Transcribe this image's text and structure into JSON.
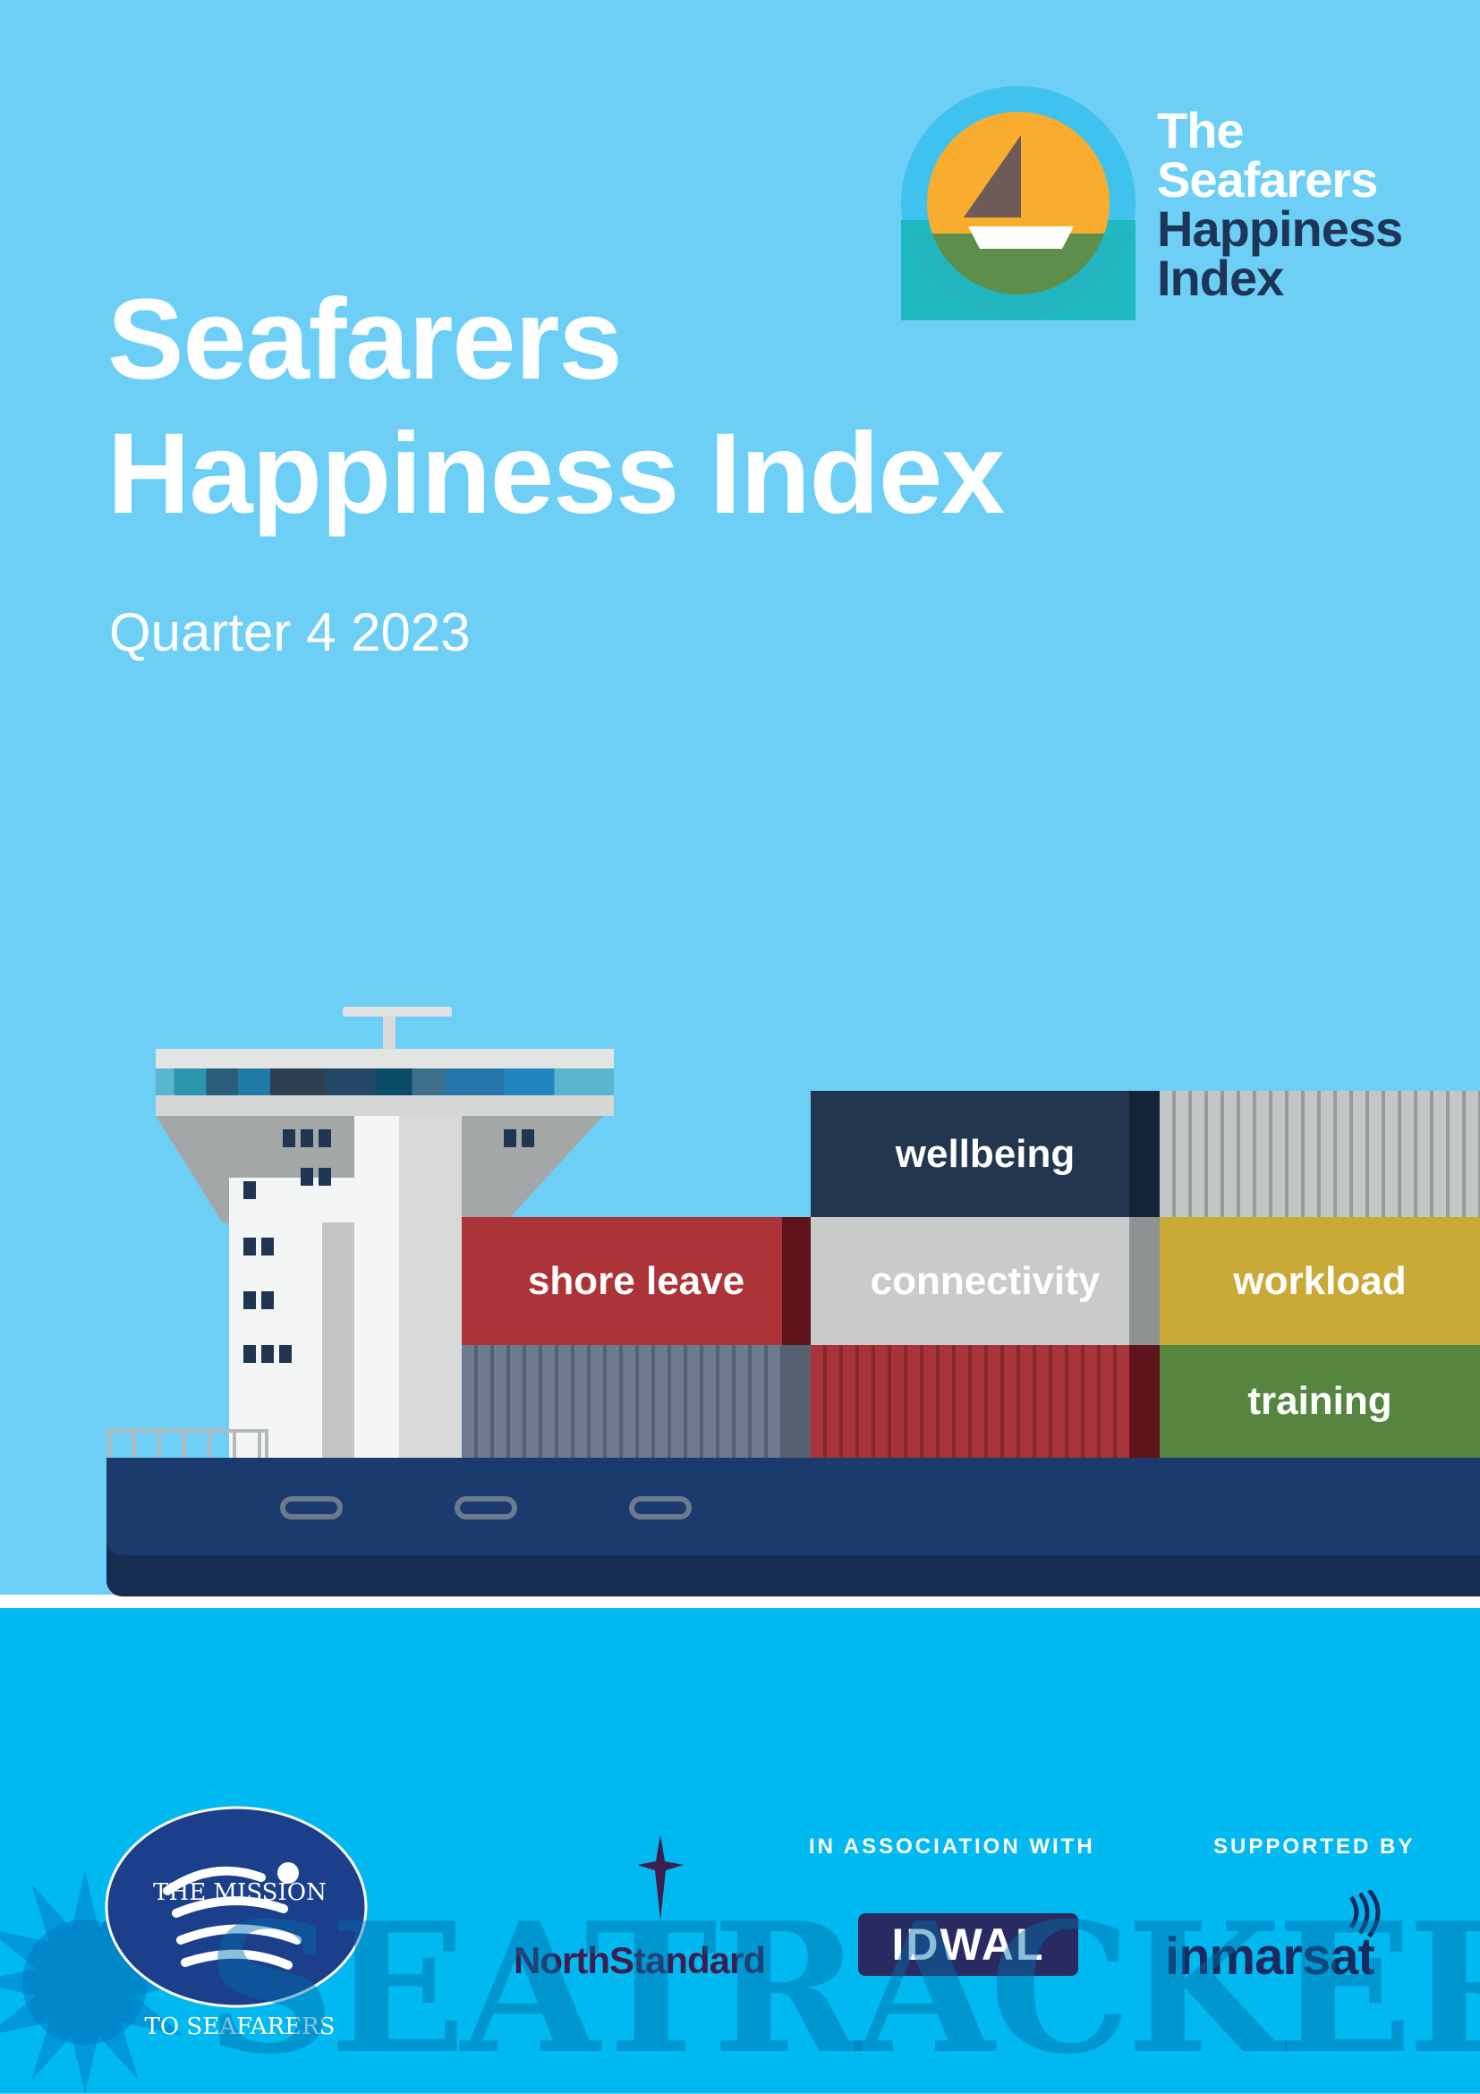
{
  "cover": {
    "title_line1": "Seafarers",
    "title_line2": "Happiness Index",
    "subtitle": "Quarter 4 2023"
  },
  "logo": {
    "line1": "The",
    "line2": "Seafarers",
    "line3": "Happiness",
    "line4": "Index"
  },
  "containers": {
    "wellbeing": "wellbeing",
    "shore_leave": "shore leave",
    "connectivity": "connectivity",
    "workload": "workload",
    "training": "training"
  },
  "footer": {
    "association_label": "IN ASSOCIATION WITH",
    "supported_label": "SUPPORTED BY",
    "mission_logo": "THE MISSION TO SEAFARERS",
    "northstandard": "NorthStandard",
    "idwal": "IDWAL",
    "inmarsat": "inmarsat",
    "watermark": "SEATRACKER.RU"
  },
  "colors": {
    "sky": "#6dcff6",
    "sea": "#00b9f1",
    "hull": "#1b3a6e",
    "wellbeing": "#22364f",
    "shore_leave": "#ac3439",
    "connectivity": "#c9cbcb",
    "workload": "#c9aa36",
    "training": "#568540"
  }
}
